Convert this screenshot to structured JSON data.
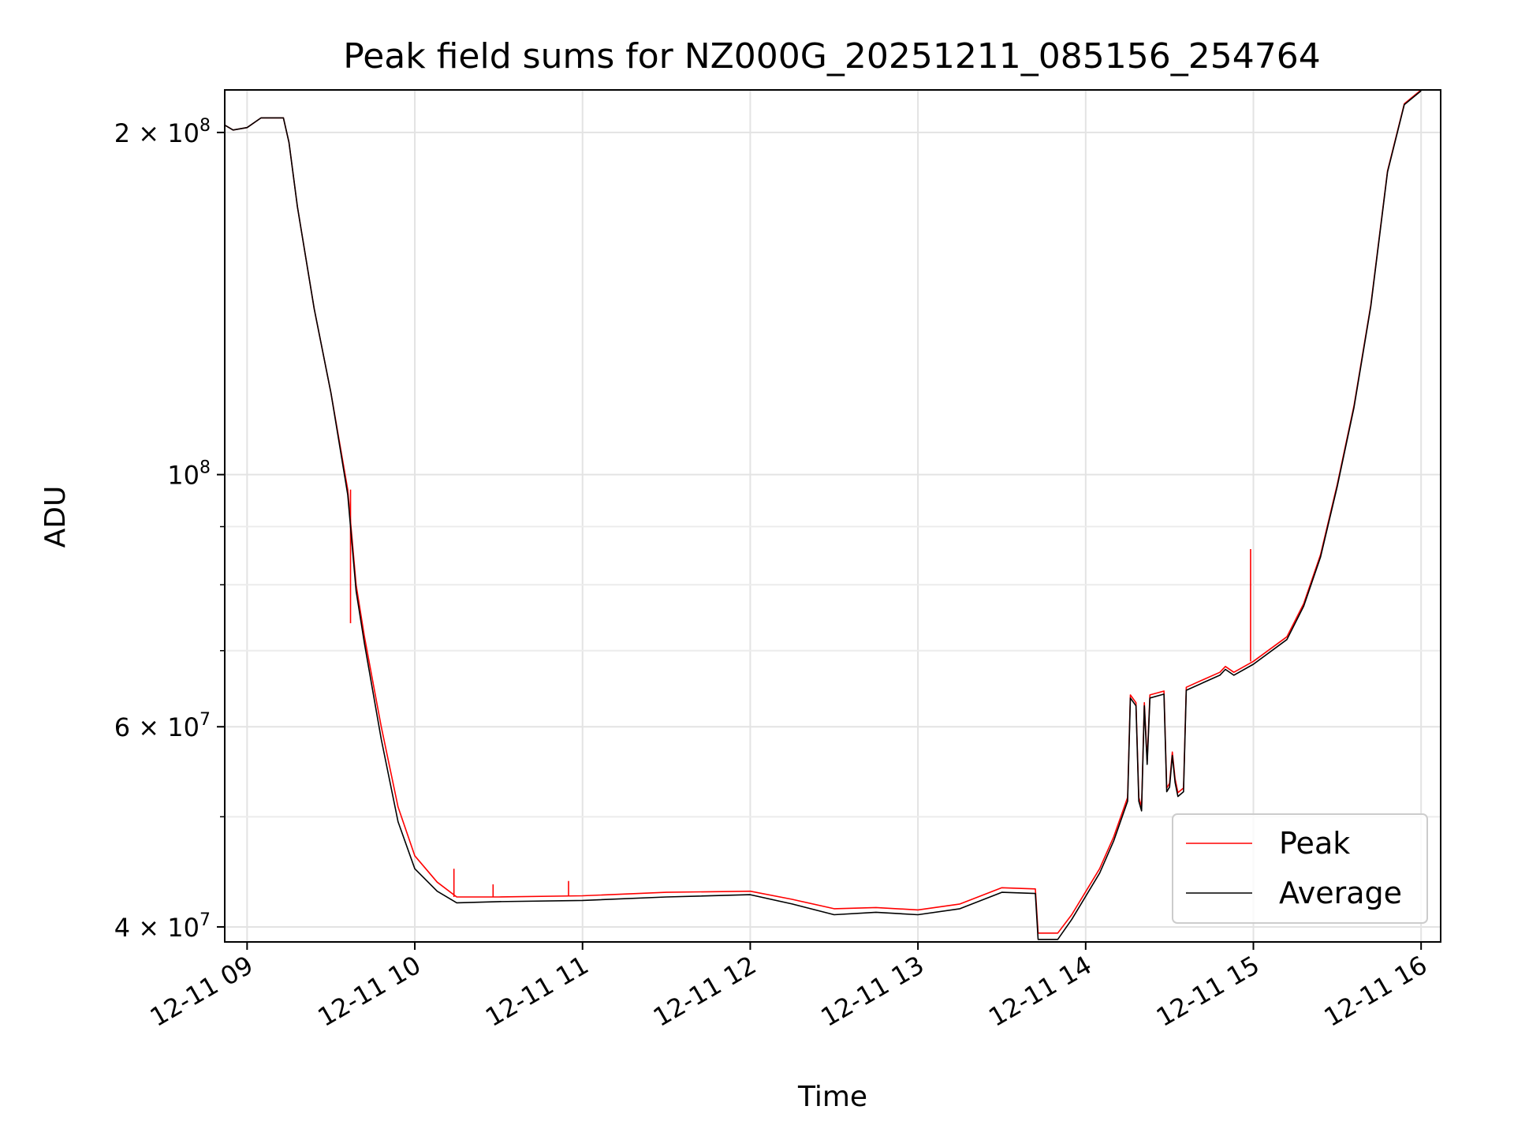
{
  "chart_data": {
    "type": "line",
    "title": "Peak field sums for NZ000G_20251211_085156_254764",
    "xlabel": "Time",
    "ylabel": "ADU",
    "y_scale": "log",
    "ylim": [
      38800000,
      218000000
    ],
    "xlim": [
      "2025-12-11 08:52",
      "2025-12-11 16:07"
    ],
    "x_ticks": [
      {
        "at": "2025-12-11 09:00",
        "label": "12-11 09"
      },
      {
        "at": "2025-12-11 10:00",
        "label": "12-11 10"
      },
      {
        "at": "2025-12-11 11:00",
        "label": "12-11 11"
      },
      {
        "at": "2025-12-11 12:00",
        "label": "12-11 12"
      },
      {
        "at": "2025-12-11 13:00",
        "label": "12-11 13"
      },
      {
        "at": "2025-12-11 14:00",
        "label": "12-11 14"
      },
      {
        "at": "2025-12-11 15:00",
        "label": "12-11 15"
      },
      {
        "at": "2025-12-11 16:00",
        "label": "12-11 16"
      }
    ],
    "y_major_ticks": [
      {
        "value": 40000000,
        "base": "4 × 10",
        "exp": "7"
      },
      {
        "value": 60000000,
        "base": "6 × 10",
        "exp": "7"
      },
      {
        "value": 100000000,
        "base": "10",
        "exp": "8"
      },
      {
        "value": 200000000,
        "base": "2 × 10",
        "exp": "8"
      }
    ],
    "y_minor_ticks": [
      50000000,
      70000000,
      80000000,
      90000000
    ],
    "grid": true,
    "legend_position": "lower-right",
    "series": [
      {
        "name": "Peak",
        "color": "#ff0000",
        "points": [
          [
            "2025-12-11 08:52",
            203000000
          ],
          [
            "2025-12-11 08:55",
            201000000
          ],
          [
            "2025-12-11 09:00",
            202000000
          ],
          [
            "2025-12-11 09:05",
            206000000
          ],
          [
            "2025-12-11 09:13",
            206000000
          ],
          [
            "2025-12-11 09:15",
            196000000
          ],
          [
            "2025-12-11 09:18",
            172000000
          ],
          [
            "2025-12-11 09:24",
            140000000
          ],
          [
            "2025-12-11 09:30",
            118000000
          ],
          [
            "2025-12-11 09:36",
            97000000
          ],
          [
            "2025-12-11 09:39",
            80000000
          ],
          [
            "2025-12-11 09:42",
            72000000
          ],
          [
            "2025-12-11 09:48",
            60000000
          ],
          [
            "2025-12-11 09:54",
            51000000
          ],
          [
            "2025-12-11 10:00",
            46200000
          ],
          [
            "2025-12-11 10:08",
            43800000
          ],
          [
            "2025-12-11 10:15",
            42500000
          ],
          [
            "2025-12-11 10:30",
            42500000
          ],
          [
            "2025-12-11 11:00",
            42600000
          ],
          [
            "2025-12-11 11:30",
            42900000
          ],
          [
            "2025-12-11 12:00",
            43000000
          ],
          [
            "2025-12-11 12:15",
            42300000
          ],
          [
            "2025-12-11 12:30",
            41500000
          ],
          [
            "2025-12-11 12:45",
            41600000
          ],
          [
            "2025-12-11 13:00",
            41400000
          ],
          [
            "2025-12-11 13:15",
            41900000
          ],
          [
            "2025-12-11 13:30",
            43300000
          ],
          [
            "2025-12-11 13:42",
            43200000
          ],
          [
            "2025-12-11 13:43",
            39500000
          ],
          [
            "2025-12-11 13:50",
            39500000
          ],
          [
            "2025-12-11 13:55",
            41000000
          ],
          [
            "2025-12-11 14:05",
            45000000
          ],
          [
            "2025-12-11 14:10",
            48000000
          ],
          [
            "2025-12-11 14:15",
            52000000
          ],
          [
            "2025-12-11 14:16",
            64000000
          ],
          [
            "2025-12-11 14:18",
            63000000
          ],
          [
            "2025-12-11 14:19",
            52000000
          ],
          [
            "2025-12-11 14:20",
            51000000
          ],
          [
            "2025-12-11 14:21",
            63000000
          ],
          [
            "2025-12-11 14:22",
            56000000
          ],
          [
            "2025-12-11 14:23",
            64000000
          ],
          [
            "2025-12-11 14:28",
            64500000
          ],
          [
            "2025-12-11 14:29",
            53000000
          ],
          [
            "2025-12-11 14:30",
            53500000
          ],
          [
            "2025-12-11 14:31",
            57000000
          ],
          [
            "2025-12-11 14:32",
            54000000
          ],
          [
            "2025-12-11 14:33",
            52500000
          ],
          [
            "2025-12-11 14:35",
            53000000
          ],
          [
            "2025-12-11 14:36",
            65000000
          ],
          [
            "2025-12-11 14:42",
            66000000
          ],
          [
            "2025-12-11 14:48",
            67000000
          ],
          [
            "2025-12-11 14:50",
            67800000
          ],
          [
            "2025-12-11 14:53",
            67000000
          ],
          [
            "2025-12-11 15:00",
            68500000
          ],
          [
            "2025-12-11 15:12",
            72000000
          ],
          [
            "2025-12-11 15:18",
            77000000
          ],
          [
            "2025-12-11 15:24",
            85000000
          ],
          [
            "2025-12-11 15:30",
            98000000
          ],
          [
            "2025-12-11 15:36",
            115000000
          ],
          [
            "2025-12-11 15:42",
            141000000
          ],
          [
            "2025-12-11 15:48",
            185000000
          ],
          [
            "2025-12-11 15:54",
            212000000
          ],
          [
            "2025-12-11 16:00",
            218000000
          ]
        ],
        "spikes": [
          [
            "2025-12-11 09:37",
            74000000
          ],
          [
            "2025-12-11 10:14",
            45000000
          ],
          [
            "2025-12-11 10:28",
            43600000
          ],
          [
            "2025-12-11 10:55",
            43900000
          ],
          [
            "2025-12-11 14:59",
            86000000
          ]
        ]
      },
      {
        "name": "Average",
        "color": "#000000",
        "points": [
          [
            "2025-12-11 08:52",
            203000000
          ],
          [
            "2025-12-11 08:55",
            201000000
          ],
          [
            "2025-12-11 09:00",
            202000000
          ],
          [
            "2025-12-11 09:05",
            206000000
          ],
          [
            "2025-12-11 09:13",
            206000000
          ],
          [
            "2025-12-11 09:15",
            196000000
          ],
          [
            "2025-12-11 09:18",
            172000000
          ],
          [
            "2025-12-11 09:24",
            140000000
          ],
          [
            "2025-12-11 09:30",
            118000000
          ],
          [
            "2025-12-11 09:36",
            96000000
          ],
          [
            "2025-12-11 09:39",
            79000000
          ],
          [
            "2025-12-11 09:42",
            71000000
          ],
          [
            "2025-12-11 09:48",
            58500000
          ],
          [
            "2025-12-11 09:54",
            49500000
          ],
          [
            "2025-12-11 10:00",
            45000000
          ],
          [
            "2025-12-11 10:08",
            43000000
          ],
          [
            "2025-12-11 10:15",
            42000000
          ],
          [
            "2025-12-11 10:30",
            42100000
          ],
          [
            "2025-12-11 11:00",
            42200000
          ],
          [
            "2025-12-11 11:30",
            42500000
          ],
          [
            "2025-12-11 12:00",
            42700000
          ],
          [
            "2025-12-11 12:15",
            41900000
          ],
          [
            "2025-12-11 12:30",
            41000000
          ],
          [
            "2025-12-11 12:45",
            41200000
          ],
          [
            "2025-12-11 13:00",
            41000000
          ],
          [
            "2025-12-11 13:15",
            41500000
          ],
          [
            "2025-12-11 13:30",
            42900000
          ],
          [
            "2025-12-11 13:42",
            42800000
          ],
          [
            "2025-12-11 13:43",
            39000000
          ],
          [
            "2025-12-11 13:50",
            39000000
          ],
          [
            "2025-12-11 13:55",
            40600000
          ],
          [
            "2025-12-11 14:05",
            44600000
          ],
          [
            "2025-12-11 14:10",
            47600000
          ],
          [
            "2025-12-11 14:15",
            51600000
          ],
          [
            "2025-12-11 14:16",
            63600000
          ],
          [
            "2025-12-11 14:18",
            62600000
          ],
          [
            "2025-12-11 14:19",
            51600000
          ],
          [
            "2025-12-11 14:20",
            50600000
          ],
          [
            "2025-12-11 14:21",
            62600000
          ],
          [
            "2025-12-11 14:22",
            55600000
          ],
          [
            "2025-12-11 14:23",
            63600000
          ],
          [
            "2025-12-11 14:28",
            64100000
          ],
          [
            "2025-12-11 14:29",
            52600000
          ],
          [
            "2025-12-11 14:30",
            53100000
          ],
          [
            "2025-12-11 14:31",
            56600000
          ],
          [
            "2025-12-11 14:32",
            53600000
          ],
          [
            "2025-12-11 14:33",
            52100000
          ],
          [
            "2025-12-11 14:35",
            52600000
          ],
          [
            "2025-12-11 14:36",
            64600000
          ],
          [
            "2025-12-11 14:42",
            65600000
          ],
          [
            "2025-12-11 14:48",
            66600000
          ],
          [
            "2025-12-11 14:50",
            67400000
          ],
          [
            "2025-12-11 14:53",
            66600000
          ],
          [
            "2025-12-11 15:00",
            68100000
          ],
          [
            "2025-12-11 15:12",
            71600000
          ],
          [
            "2025-12-11 15:18",
            76600000
          ],
          [
            "2025-12-11 15:24",
            84600000
          ],
          [
            "2025-12-11 15:30",
            97600000
          ],
          [
            "2025-12-11 15:36",
            114600000
          ],
          [
            "2025-12-11 15:42",
            140600000
          ],
          [
            "2025-12-11 15:48",
            184600000
          ],
          [
            "2025-12-11 15:54",
            211600000
          ],
          [
            "2025-12-11 16:00",
            217600000
          ]
        ]
      }
    ]
  }
}
